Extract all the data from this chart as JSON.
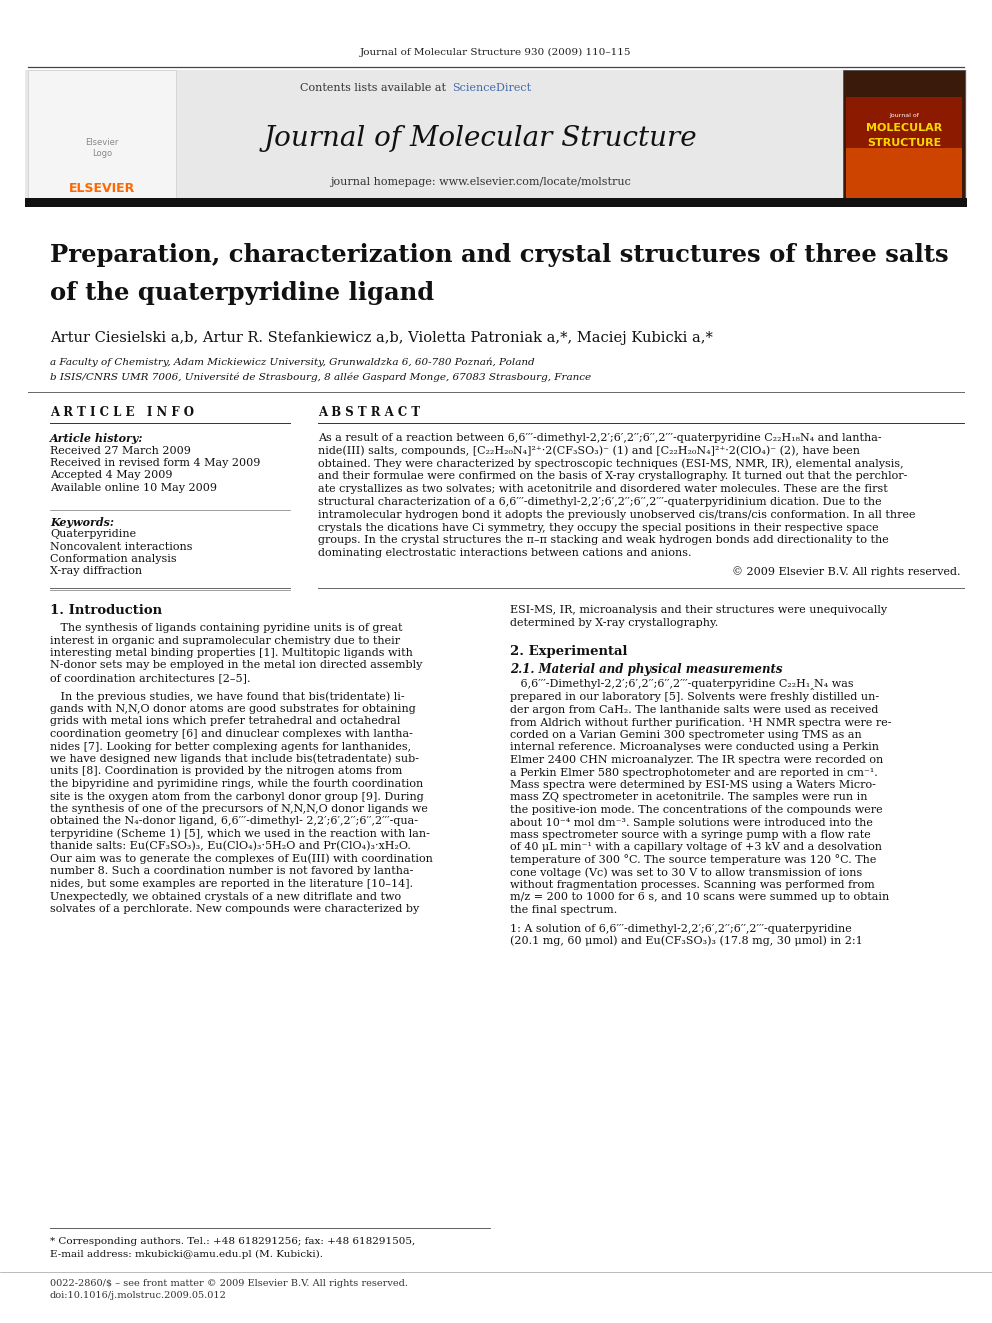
{
  "page_width": 9.92,
  "page_height": 13.23,
  "bg_color": "#ffffff",
  "journal_ref": "Journal of Molecular Structure 930 (2009) 110–115",
  "header_bg": "#e8e8e8",
  "contents_text": "Contents lists available at",
  "sciencedirect_text": "ScienceDirect",
  "sciencedirect_color": "#4169aa",
  "journal_title": "Journal of Molecular Structure",
  "journal_homepage": "journal homepage: www.elsevier.com/locate/molstruc",
  "elsevier_color": "#ff6600",
  "paper_title_line1": "Preparation, characterization and crystal structures of three salts",
  "paper_title_line2": "of the quaterpyridine ligand",
  "authors": "Artur Ciesielski a,b, Artur R. Stefankiewicz a,b, Violetta Patroniak a,*, Maciej Kubicki a,*",
  "affil_a": "a Faculty of Chemistry, Adam Mickiewicz University, Grunwaldzka 6, 60-780 Poznań, Poland",
  "affil_b": "b ISIS/CNRS UMR 7006, Université de Strasbourg, 8 allée Gaspard Monge, 67083 Strasbourg, France",
  "article_info_header": "A R T I C L E   I N F O",
  "abstract_header": "A B S T R A C T",
  "article_history_label": "Article history:",
  "received": "Received 27 March 2009",
  "received_revised": "Received in revised form 4 May 2009",
  "accepted": "Accepted 4 May 2009",
  "available": "Available online 10 May 2009",
  "keywords_label": "Keywords:",
  "keyword1": "Quaterpyridine",
  "keyword2": "Noncovalent interactions",
  "keyword3": "Conformation analysis",
  "keyword4": "X-ray diffraction",
  "abstract_lines": [
    "As a result of a reaction between 6,6′′′-dimethyl-2,2′;6′,2′′;6′′,2′′′-quaterpyridine C₂₂H₁₈N₄ and lantha-",
    "nide(III) salts, compounds, [C₂₂H₂₀N₄]²⁺·2(CF₃SO₃)⁻ (1) and [C₂₂H₂₀N₄]²⁺·2(ClO₄)⁻ (2), have been",
    "obtained. They were characterized by spectroscopic techniques (ESI-MS, NMR, IR), elemental analysis,",
    "and their formulae were confirmed on the basis of X-ray crystallography. It turned out that the perchlor-",
    "ate crystallizes as two solvates; with acetonitrile and disordered water molecules. These are the first",
    "structural characterization of a 6,6′′′-dimethyl-2,2′;6′,2′′;6′′,2′′′-quaterpyridinium dication. Due to the",
    "intramolecular hydrogen bond it adopts the previously unobserved cis/trans/cis conformation. In all three",
    "crystals the dications have Ci symmetry, they occupy the special positions in their respective space",
    "groups. In the crystal structures the π–π stacking and weak hydrogen bonds add directionality to the",
    "dominating electrostatic interactions between cations and anions."
  ],
  "copyright": "© 2009 Elsevier B.V. All rights reserved.",
  "section1_title": "1. Introduction",
  "intro_para1_lines": [
    "   The synthesis of ligands containing pyridine units is of great",
    "interest in organic and supramolecular chemistry due to their",
    "interesting metal binding properties [1]. Multitopic ligands with",
    "N-donor sets may be employed in the metal ion directed assembly",
    "of coordination architectures [2–5]."
  ],
  "intro_para2_lines": [
    "   In the previous studies, we have found that bis(tridentate) li-",
    "gands with N,N,O donor atoms are good substrates for obtaining",
    "grids with metal ions which prefer tetrahedral and octahedral",
    "coordination geometry [6] and dinuclear complexes with lantha-",
    "nides [7]. Looking for better complexing agents for lanthanides,",
    "we have designed new ligands that include bis(tetradentate) sub-",
    "units [8]. Coordination is provided by the nitrogen atoms from",
    "the bipyridine and pyrimidine rings, while the fourth coordination",
    "site is the oxygen atom from the carbonyl donor group [9]. During",
    "the synthesis of one of the precursors of N,N,N,O donor ligands we",
    "obtained the N₄-donor ligand, 6,6′′′-dimethyl- 2,2′;6′,2′′;6′′,2′′′-qua-",
    "terpyridine (Scheme 1) [5], which we used in the reaction with lan-",
    "thanide salts: Eu(CF₃SO₃)₃, Eu(ClO₄)₃·5H₂O and Pr(ClO₄)₃·xH₂O.",
    "Our aim was to generate the complexes of Eu(III) with coordination",
    "number 8. Such a coordination number is not favored by lantha-",
    "nides, but some examples are reported in the literature [10–14].",
    "Unexpectedly, we obtained crystals of a new ditriflate and two",
    "solvates of a perchlorate. New compounds were characterized by"
  ],
  "right_col_intro_lines": [
    "ESI-MS, IR, microanalysis and their structures were unequivocally",
    "determined by X-ray crystallography."
  ],
  "section2_title": "2. Experimental",
  "section21_title": "2.1. Material and physical measurements",
  "section21_lines": [
    "   6,6′′′-Dimethyl-2,2′;6′,2′′;6′′,2′′′-quaterpyridine C₂₂H₁‸N₄ was",
    "prepared in our laboratory [5]. Solvents were freshly distilled un-",
    "der argon from CaH₂. The lanthanide salts were used as received",
    "from Aldrich without further purification. ¹H NMR spectra were re-",
    "corded on a Varian Gemini 300 spectrometer using TMS as an",
    "internal reference. Microanalyses were conducted using a Perkin",
    "Elmer 2400 CHN microanalyzer. The IR spectra were recorded on",
    "a Perkin Elmer 580 spectrophotometer and are reported in cm⁻¹.",
    "Mass spectra were determined by ESI-MS using a Waters Micro-",
    "mass ZQ spectrometer in acetonitrile. The samples were run in",
    "the positive-ion mode. The concentrations of the compounds were",
    "about 10⁻⁴ mol dm⁻³. Sample solutions were introduced into the",
    "mass spectrometer source with a syringe pump with a flow rate",
    "of 40 μL min⁻¹ with a capillary voltage of +3 kV and a desolvation",
    "temperature of 300 °C. The source temperature was 120 °C. The",
    "cone voltage (Vc) was set to 30 V to allow transmission of ions",
    "without fragmentation processes. Scanning was performed from",
    "m/z = 200 to 1000 for 6 s, and 10 scans were summed up to obtain",
    "the final spectrum."
  ],
  "footnote_line1": "* Corresponding authors. Tel.: +48 618291256; fax: +48 618291505,",
  "footnote_line2": "E-mail address: mkubicki@amu.edu.pl (M. Kubicki).",
  "issn_line1": "0022-2860/$ – see front matter © 2009 Elsevier B.V. All rights reserved.",
  "issn_line2": "doi:10.1016/j.molstruc.2009.05.012",
  "section1_num_lines": [
    "1: A solution of 6,6′′′-dimethyl-2,2′;6′,2′′;6′′,2′′′-quaterpyridine",
    "(20.1 mg, 60 μmol) and Eu(CF₃SO₃)₃ (17.8 mg, 30 μmol) in 2:1"
  ]
}
